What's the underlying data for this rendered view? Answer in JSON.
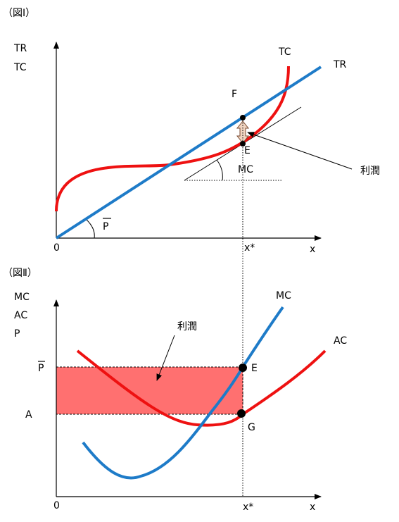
{
  "top_chart": {
    "caption": "（図Ⅰ）",
    "y_label_1": "TR",
    "y_label_2": "TC",
    "origin": "0",
    "x_label": "x",
    "x_star": "x*",
    "curve_tc_label": "TC",
    "curve_tr_label": "TR",
    "point_f": "F",
    "point_e": "E",
    "mc_label": "MC",
    "p_label": "P",
    "profit_label": "利潤",
    "colors": {
      "tc": "#ee1111",
      "tr": "#1e7bc8"
    }
  },
  "bottom_chart": {
    "caption": "（図Ⅱ）",
    "y_label_1": "MC",
    "y_label_2": "AC",
    "y_label_3": "P",
    "p_bar_label": "P",
    "a_label": "A",
    "origin": "0",
    "x_label": "x",
    "x_star": "x*",
    "curve_mc_label": "MC",
    "curve_ac_label": "AC",
    "point_e": "E",
    "point_g": "G",
    "profit_label": "利潤",
    "colors": {
      "ac": "#ee1111",
      "mc": "#1e7bc8",
      "profit_fill": "#ff7070"
    }
  }
}
